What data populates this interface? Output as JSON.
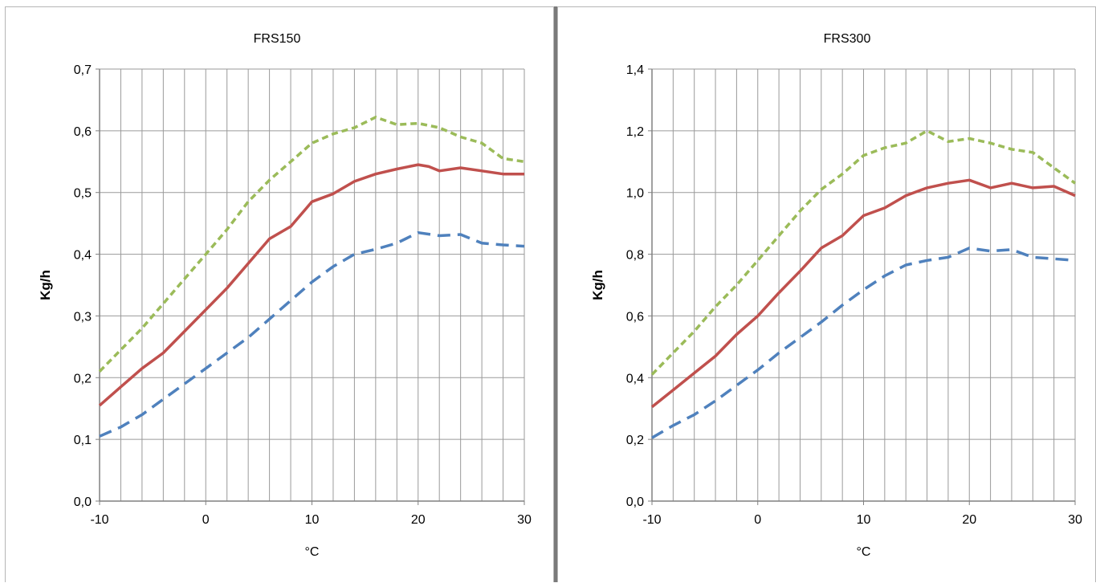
{
  "chart_data": [
    {
      "type": "line",
      "title": "FRS150",
      "xlabel": "°C",
      "ylabel": "Kg/h",
      "xlim": [
        -10,
        30
      ],
      "ylim": [
        0,
        0.7
      ],
      "xticks": [
        -10,
        0,
        10,
        20,
        30
      ],
      "xtick_labels": [
        "-10",
        "0",
        "10",
        "20",
        "30"
      ],
      "yticks": [
        0,
        0.1,
        0.2,
        0.3,
        0.4,
        0.5,
        0.6,
        0.7
      ],
      "ytick_labels": [
        "0,0",
        "0,1",
        "0,2",
        "0,3",
        "0,4",
        "0,5",
        "0,6",
        "0,7"
      ],
      "minor_x_step": 2,
      "grid": true,
      "series": [
        {
          "color": "#9bbb59",
          "style": "dashed-short",
          "x": [
            -10,
            -8,
            -6,
            -4,
            -2,
            0,
            2,
            4,
            6,
            8,
            10,
            12,
            14,
            16,
            18,
            20,
            22,
            24,
            26,
            28,
            30
          ],
          "y": [
            0.21,
            0.245,
            0.28,
            0.32,
            0.36,
            0.4,
            0.44,
            0.485,
            0.52,
            0.55,
            0.58,
            0.595,
            0.605,
            0.622,
            0.61,
            0.612,
            0.605,
            0.59,
            0.58,
            0.555,
            0.55
          ]
        },
        {
          "color": "#c0504d",
          "style": "solid",
          "x": [
            -10,
            -8,
            -6,
            -4,
            -2,
            0,
            2,
            4,
            6,
            8,
            10,
            12,
            14,
            16,
            18,
            20,
            21,
            22,
            24,
            26,
            28,
            30
          ],
          "y": [
            0.155,
            0.185,
            0.215,
            0.24,
            0.275,
            0.31,
            0.345,
            0.385,
            0.425,
            0.445,
            0.485,
            0.498,
            0.518,
            0.53,
            0.538,
            0.545,
            0.542,
            0.535,
            0.54,
            0.535,
            0.53,
            0.53
          ]
        },
        {
          "color": "#4f81bd",
          "style": "dashed-long",
          "x": [
            -10,
            -8,
            -6,
            -4,
            -2,
            0,
            2,
            4,
            6,
            8,
            10,
            12,
            14,
            16,
            18,
            20,
            22,
            24,
            26,
            28,
            30
          ],
          "y": [
            0.105,
            0.12,
            0.14,
            0.165,
            0.19,
            0.215,
            0.24,
            0.265,
            0.295,
            0.325,
            0.355,
            0.38,
            0.4,
            0.408,
            0.418,
            0.435,
            0.43,
            0.432,
            0.418,
            0.415,
            0.413
          ]
        }
      ]
    },
    {
      "type": "line",
      "title": "FRS300",
      "xlabel": "°C",
      "ylabel": "Kg/h",
      "xlim": [
        -10,
        30
      ],
      "ylim": [
        0,
        1.4
      ],
      "xticks": [
        -10,
        0,
        10,
        20,
        30
      ],
      "xtick_labels": [
        "-10",
        "0",
        "10",
        "20",
        "30"
      ],
      "yticks": [
        0,
        0.2,
        0.4,
        0.6,
        0.8,
        1.0,
        1.2,
        1.4
      ],
      "ytick_labels": [
        "0,0",
        "0,2",
        "0,4",
        "0,6",
        "0,8",
        "1,0",
        "1,2",
        "1,4"
      ],
      "minor_x_step": 2,
      "grid": true,
      "series": [
        {
          "color": "#9bbb59",
          "style": "dashed-short",
          "x": [
            -10,
            -8,
            -6,
            -4,
            -2,
            0,
            2,
            4,
            6,
            8,
            10,
            12,
            14,
            16,
            18,
            20,
            22,
            24,
            26,
            28,
            30
          ],
          "y": [
            0.41,
            0.48,
            0.55,
            0.63,
            0.7,
            0.78,
            0.86,
            0.94,
            1.01,
            1.06,
            1.12,
            1.145,
            1.16,
            1.2,
            1.165,
            1.175,
            1.16,
            1.14,
            1.13,
            1.08,
            1.03
          ]
        },
        {
          "color": "#c0504d",
          "style": "solid",
          "x": [
            -10,
            -8,
            -6,
            -4,
            -2,
            0,
            2,
            4,
            6,
            8,
            10,
            12,
            14,
            16,
            18,
            20,
            22,
            24,
            26,
            28,
            30
          ],
          "y": [
            0.305,
            0.36,
            0.415,
            0.47,
            0.54,
            0.6,
            0.675,
            0.745,
            0.82,
            0.86,
            0.925,
            0.95,
            0.99,
            1.015,
            1.03,
            1.04,
            1.015,
            1.03,
            1.015,
            1.02,
            0.99
          ]
        },
        {
          "color": "#4f81bd",
          "style": "dashed-long",
          "x": [
            -10,
            -8,
            -6,
            -4,
            -2,
            0,
            2,
            4,
            6,
            8,
            10,
            12,
            14,
            16,
            18,
            20,
            22,
            24,
            26,
            28,
            30
          ],
          "y": [
            0.205,
            0.245,
            0.28,
            0.325,
            0.375,
            0.425,
            0.48,
            0.53,
            0.58,
            0.635,
            0.685,
            0.73,
            0.765,
            0.78,
            0.79,
            0.82,
            0.81,
            0.815,
            0.79,
            0.785,
            0.78
          ]
        }
      ]
    }
  ]
}
